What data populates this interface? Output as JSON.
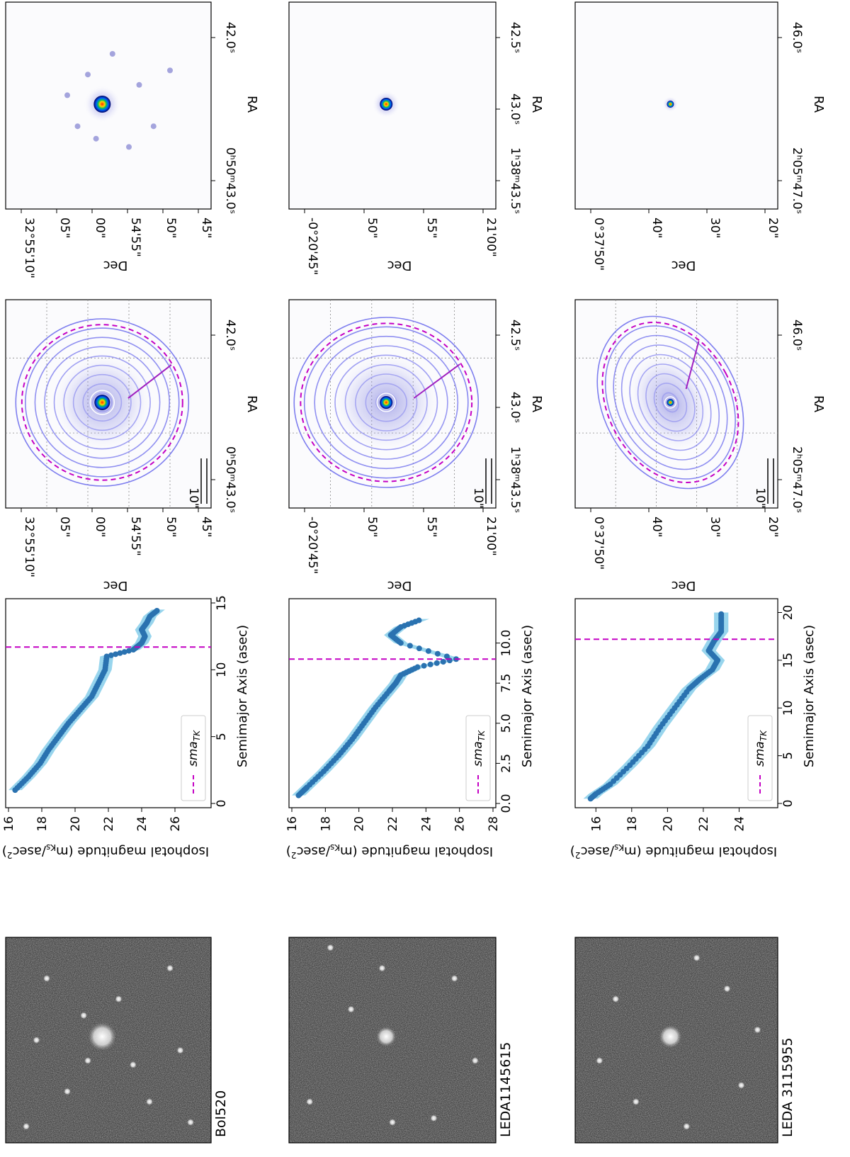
{
  "figure": {
    "rows": [
      {
        "name": "Bol520",
        "profile_ticks_x": [
          "0",
          "5",
          "10",
          "15"
        ],
        "profile_ticks_y": [
          "16",
          "18",
          "20",
          "22",
          "24",
          "26"
        ],
        "dec_ticks": [
          "32°55'10\"",
          "05\"",
          "00\"",
          "54'55\"",
          "50\"",
          "45\""
        ],
        "ra_ticks": [
          "0ʰ50ᵐ43.0ˢ",
          "42.0ˢ"
        ],
        "scale": "10\""
      },
      {
        "name": "LEDA1145615",
        "profile_ticks_x": [
          "0.0",
          "2.5",
          "5.0",
          "7.5",
          "10.0"
        ],
        "profile_ticks_y": [
          "16",
          "18",
          "20",
          "22",
          "24",
          "26",
          "28"
        ],
        "dec_ticks": [
          "-0°20'45\"",
          "50\"",
          "55\"",
          "21'00\""
        ],
        "ra_ticks": [
          "1ʰ38ᵐ43.5ˢ",
          "43.0ˢ",
          "42.5ˢ"
        ],
        "scale": "10\""
      },
      {
        "name": "LEDA  3115955",
        "profile_ticks_x": [
          "0",
          "5",
          "10",
          "15",
          "20"
        ],
        "profile_ticks_y": [
          "16",
          "18",
          "20",
          "22",
          "24"
        ],
        "dec_ticks": [
          "0°37'50\"",
          "40\"",
          "30\"",
          "20\""
        ],
        "ra_ticks": [
          "2ʰ05ᵐ47.0ˢ",
          "46.0ˢ"
        ],
        "scale": "10\""
      }
    ],
    "profile_xlabel": "Semimajor Axis (asec)",
    "profile_ylabel": "Isophotal magnitude (m",
    "profile_ylabel_sub": "Ks",
    "profile_ylabel_tail": "/asec",
    "profile_ylabel_sup": "2",
    "profile_ylabel_close": ")",
    "legend_label": "sma",
    "legend_label_sub": "TK",
    "dec_label": "Dec",
    "ra_label": "RA"
  },
  "chart_data": [
    {
      "type": "scatter",
      "title": "",
      "xlabel": "Semimajor Axis (asec)",
      "ylabel": "Isophotal magnitude (mKs/asec2)",
      "xlim": [
        0,
        15
      ],
      "ylim": [
        16,
        28
      ],
      "y_inverted": true,
      "series": [
        {
          "name": "",
          "x": [
            1,
            2,
            3,
            4,
            5,
            6,
            7,
            8,
            9,
            10,
            11,
            11.5,
            12,
            12.5,
            13,
            13.5,
            14,
            14.5
          ],
          "y": [
            16.4,
            17.2,
            17.9,
            18.4,
            19.0,
            19.6,
            20.3,
            21.0,
            21.4,
            21.8,
            21.9,
            23.5,
            24.0,
            24.2,
            24.0,
            24.3,
            24.5,
            25.0
          ]
        }
      ],
      "vline": {
        "name": "smaTK",
        "x": 11.7
      }
    },
    {
      "type": "scatter",
      "title": "",
      "xlabel": "Semimajor Axis (asec)",
      "ylabel": "Isophotal magnitude (mKs/asec2)",
      "xlim": [
        0,
        12.5
      ],
      "ylim": [
        16,
        28
      ],
      "y_inverted": true,
      "series": [
        {
          "name": "",
          "x": [
            0.5,
            1,
            2,
            3,
            4,
            5,
            6,
            7,
            7.5,
            8,
            8.5,
            9,
            10,
            10.5,
            11,
            11.5
          ],
          "y": [
            16.4,
            16.9,
            17.9,
            18.8,
            19.6,
            20.3,
            21.0,
            21.8,
            22.2,
            22.5,
            23.5,
            25.8,
            22.5,
            21.9,
            22.5,
            23.8
          ],
          "y_label": []
        }
      ],
      "vline": {
        "name": "smaTK",
        "x": 9.0
      }
    },
    {
      "type": "scatter",
      "title": "",
      "xlabel": "Semimajor Axis (asec)",
      "ylabel": "Isophotal magnitude (mKs/asec2)",
      "xlim": [
        0,
        21
      ],
      "ylim": [
        15,
        26
      ],
      "y_inverted": true,
      "series": [
        {
          "name": "",
          "x": [
            0.5,
            1,
            2,
            4,
            6,
            8,
            10,
            12,
            13,
            14,
            15,
            16,
            17,
            18,
            19,
            20
          ],
          "y": [
            15.7,
            16.0,
            16.8,
            17.9,
            18.9,
            19.6,
            20.4,
            21.2,
            21.8,
            22.5,
            22.8,
            22.3,
            22.6,
            23.0,
            23.0,
            23.0
          ]
        }
      ],
      "vline": {
        "name": "smaTK",
        "x": 17.2
      }
    }
  ]
}
